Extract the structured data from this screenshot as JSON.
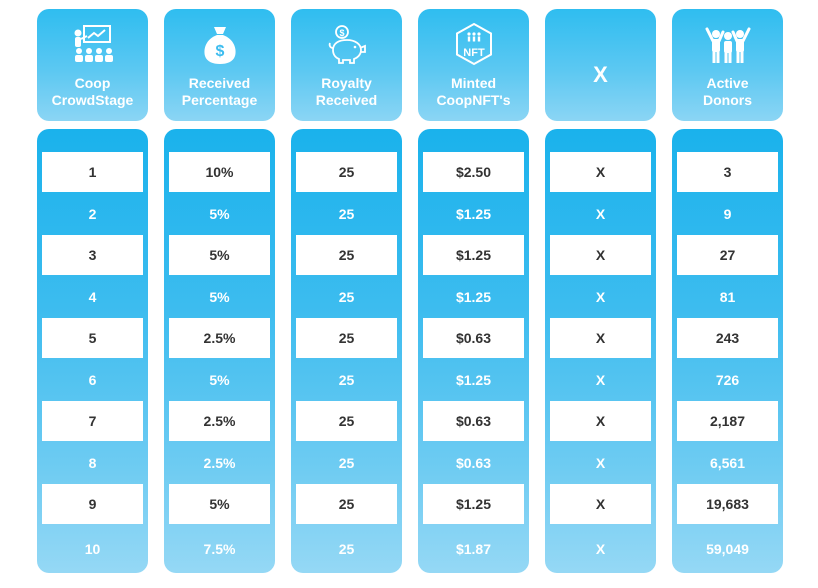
{
  "colors": {
    "accent_top": "#2fbdf0",
    "accent_bottom": "#95d8f5",
    "dark_text": "#333333"
  },
  "columns": [
    {
      "id": "crowdstage",
      "icon": "presentation-audience-icon",
      "header": "Coop\nCrowdStage",
      "values": [
        "1",
        "2",
        "3",
        "4",
        "5",
        "6",
        "7",
        "8",
        "9",
        "10"
      ]
    },
    {
      "id": "percentage",
      "icon": "money-bag-icon",
      "header": "Received\nPercentage",
      "values": [
        "10%",
        "5%",
        "5%",
        "5%",
        "2.5%",
        "5%",
        "2.5%",
        "2.5%",
        "5%",
        "7.5%"
      ]
    },
    {
      "id": "royalty",
      "icon": "piggy-bank-icon",
      "header": "Royalty\nReceived",
      "values": [
        "25",
        "25",
        "25",
        "25",
        "25",
        "25",
        "25",
        "25",
        "25",
        "25"
      ]
    },
    {
      "id": "minted",
      "icon": "nft-hexagon-icon",
      "icon_text": "NFT",
      "header": "Minted\nCoopNFT's",
      "values": [
        "$2.50",
        "$1.25",
        "$1.25",
        "$1.25",
        "$0.63",
        "$1.25",
        "$0.63",
        "$0.63",
        "$1.25",
        "$1.87"
      ]
    },
    {
      "id": "x",
      "icon": "",
      "header": "X",
      "values": [
        "X",
        "X",
        "X",
        "X",
        "X",
        "X",
        "X",
        "X",
        "X",
        "X"
      ]
    },
    {
      "id": "donors",
      "icon": "group-celebrating-icon",
      "header": "Active\nDonors",
      "values": [
        "3",
        "9",
        "27",
        "81",
        "243",
        "726",
        "2,187",
        "6,561",
        "19,683",
        "59,049"
      ]
    }
  ]
}
